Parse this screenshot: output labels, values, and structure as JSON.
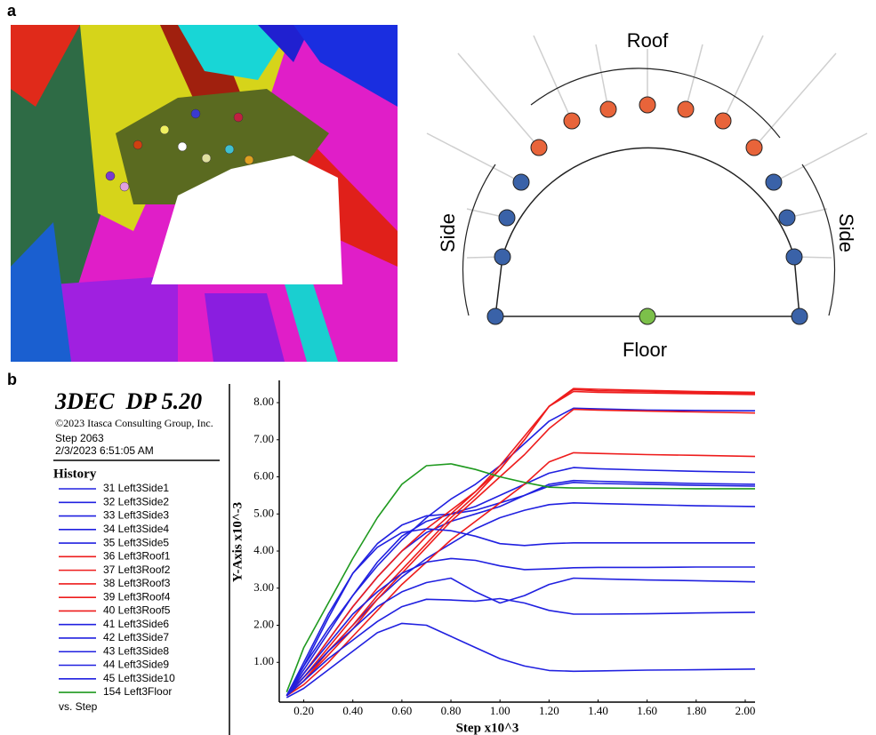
{
  "panel_labels": [
    "a",
    "b"
  ],
  "diagram": {
    "roof": "Roof",
    "side_left": "Side",
    "side_right": "Side",
    "floor": "Floor"
  },
  "history_header": {
    "program": "3DEC  DP 5.20",
    "copyright": "©2023 Itasca Consulting Group, Inc.",
    "step": "Step 2063",
    "date": "2/3/2023 6:51:05 AM",
    "legend_title": "History",
    "x_variable": "vs. Step"
  },
  "chart_data": {
    "type": "line",
    "y_label": "Y-Axis x10^-3",
    "x_label": "Step x10^3",
    "xlim": [
      0.1,
      2.04
    ],
    "ylim": [
      0,
      8.6
    ],
    "grid": false,
    "xticks": [
      {
        "value": 0.2,
        "label": "0.20"
      },
      {
        "value": 0.4,
        "label": "0.40"
      },
      {
        "value": 0.6,
        "label": "0.60"
      },
      {
        "value": 0.8,
        "label": "0.80"
      },
      {
        "value": 1.0,
        "label": "1.00"
      },
      {
        "value": 1.2,
        "label": "1.20"
      },
      {
        "value": 1.4,
        "label": "1.40"
      },
      {
        "value": 1.6,
        "label": "1.60"
      },
      {
        "value": 1.8,
        "label": "1.80"
      },
      {
        "value": 2.0,
        "label": "2.00"
      }
    ],
    "yticks": [
      {
        "value": 1,
        "label": "1.00"
      },
      {
        "value": 2,
        "label": "2.00"
      },
      {
        "value": 3,
        "label": "3.00"
      },
      {
        "value": 4,
        "label": "4.00"
      },
      {
        "value": 5,
        "label": "5.00"
      },
      {
        "value": 6,
        "label": "6.00"
      },
      {
        "value": 7,
        "label": "7.00"
      },
      {
        "value": 8,
        "label": "8.00"
      }
    ],
    "x": [
      0.13,
      0.2,
      0.3,
      0.4,
      0.5,
      0.6,
      0.7,
      0.8,
      0.9,
      1.0,
      1.1,
      1.2,
      1.3,
      1.4,
      1.6,
      1.8,
      2.04
    ],
    "series": [
      {
        "name": "31 Left3Side1",
        "color": "#2020e0",
        "values": [
          0.1,
          0.9,
          1.9,
          2.8,
          3.6,
          4.3,
          4.9,
          5.4,
          5.8,
          6.3,
          6.9,
          7.5,
          7.85,
          7.83,
          7.8,
          7.79,
          7.78
        ]
      },
      {
        "name": "32 Left3Side2",
        "color": "#2020e0",
        "values": [
          0.1,
          0.8,
          1.8,
          2.8,
          3.7,
          4.4,
          4.8,
          5.0,
          5.2,
          5.5,
          5.8,
          6.1,
          6.25,
          6.22,
          6.18,
          6.15,
          6.12
        ]
      },
      {
        "name": "33 Left3Side3",
        "color": "#2020e0",
        "values": [
          0.1,
          0.7,
          1.6,
          2.5,
          3.3,
          4.0,
          4.5,
          4.8,
          5.0,
          5.2,
          5.5,
          5.8,
          5.9,
          5.88,
          5.85,
          5.82,
          5.8
        ]
      },
      {
        "name": "34 Left3Side4",
        "color": "#2020e0",
        "values": [
          0.1,
          0.9,
          2.2,
          3.4,
          4.2,
          4.7,
          4.95,
          5.0,
          5.1,
          5.3,
          5.5,
          5.75,
          5.85,
          5.82,
          5.8,
          5.77,
          5.75
        ]
      },
      {
        "name": "35 Left3Side5",
        "color": "#2020e0",
        "values": [
          0.1,
          0.6,
          1.3,
          2.0,
          2.7,
          3.3,
          3.8,
          4.2,
          4.6,
          4.9,
          5.1,
          5.25,
          5.3,
          5.28,
          5.25,
          5.22,
          5.2
        ]
      },
      {
        "name": "36 Left3Roof1",
        "color": "#ee1c1c",
        "values": [
          0.1,
          0.7,
          1.6,
          2.5,
          3.3,
          4.0,
          4.6,
          5.1,
          5.6,
          6.2,
          7.0,
          7.9,
          8.38,
          8.36,
          8.33,
          8.3,
          8.28
        ]
      },
      {
        "name": "37 Left3Roof2",
        "color": "#ee1c1c",
        "values": [
          0.1,
          0.6,
          1.4,
          2.2,
          3.0,
          3.7,
          4.4,
          5.0,
          5.6,
          6.3,
          7.1,
          7.9,
          8.35,
          8.32,
          8.3,
          8.27,
          8.25
        ]
      },
      {
        "name": "38 Left3Roof3",
        "color": "#ee1c1c",
        "values": [
          0.1,
          0.5,
          1.3,
          2.0,
          2.8,
          3.5,
          4.2,
          4.9,
          5.5,
          6.2,
          7.0,
          7.9,
          8.3,
          8.28,
          8.26,
          8.24,
          8.22
        ]
      },
      {
        "name": "39 Left3Roof4",
        "color": "#ee1c1c",
        "values": [
          0.1,
          0.5,
          1.2,
          1.9,
          2.7,
          3.4,
          4.1,
          4.8,
          5.4,
          6.0,
          6.6,
          7.3,
          7.82,
          7.8,
          7.77,
          7.75,
          7.72
        ]
      },
      {
        "name": "40 Left3Roof5",
        "color": "#ee1c1c",
        "values": [
          0.1,
          0.4,
          1.0,
          1.7,
          2.4,
          3.1,
          3.7,
          4.3,
          4.8,
          5.3,
          5.8,
          6.4,
          6.65,
          6.63,
          6.6,
          6.58,
          6.55
        ]
      },
      {
        "name": "41 Left3Side6",
        "color": "#2020e0",
        "values": [
          0.1,
          1.0,
          2.3,
          3.4,
          4.1,
          4.5,
          4.6,
          4.55,
          4.4,
          4.2,
          4.15,
          4.2,
          4.22,
          4.22,
          4.22,
          4.22,
          4.22
        ]
      },
      {
        "name": "42 Left3Side7",
        "color": "#2020e0",
        "values": [
          0.1,
          0.7,
          1.5,
          2.3,
          2.9,
          3.4,
          3.7,
          3.8,
          3.75,
          3.6,
          3.5,
          3.52,
          3.55,
          3.56,
          3.56,
          3.57,
          3.57
        ]
      },
      {
        "name": "43 Left3Side8",
        "color": "#2020e0",
        "values": [
          0.1,
          0.6,
          1.3,
          1.9,
          2.5,
          2.9,
          3.15,
          3.27,
          2.9,
          2.6,
          2.8,
          3.1,
          3.27,
          3.25,
          3.22,
          3.2,
          3.17
        ]
      },
      {
        "name": "44 Left3Side9",
        "color": "#2020e0",
        "values": [
          0.1,
          0.5,
          1.1,
          1.6,
          2.1,
          2.5,
          2.7,
          2.68,
          2.65,
          2.72,
          2.6,
          2.4,
          2.3,
          2.3,
          2.31,
          2.33,
          2.35
        ]
      },
      {
        "name": "45 Left3Side10",
        "color": "#2020e0",
        "values": [
          0.05,
          0.3,
          0.8,
          1.3,
          1.8,
          2.05,
          2.0,
          1.7,
          1.4,
          1.1,
          0.9,
          0.78,
          0.76,
          0.77,
          0.79,
          0.8,
          0.82
        ]
      },
      {
        "name": "154 Left3Floor",
        "color": "#1f9a1f",
        "values": [
          0.2,
          1.4,
          2.6,
          3.8,
          4.9,
          5.8,
          6.3,
          6.35,
          6.2,
          6.0,
          5.85,
          5.72,
          5.7,
          5.7,
          5.69,
          5.68,
          5.68
        ]
      }
    ]
  }
}
